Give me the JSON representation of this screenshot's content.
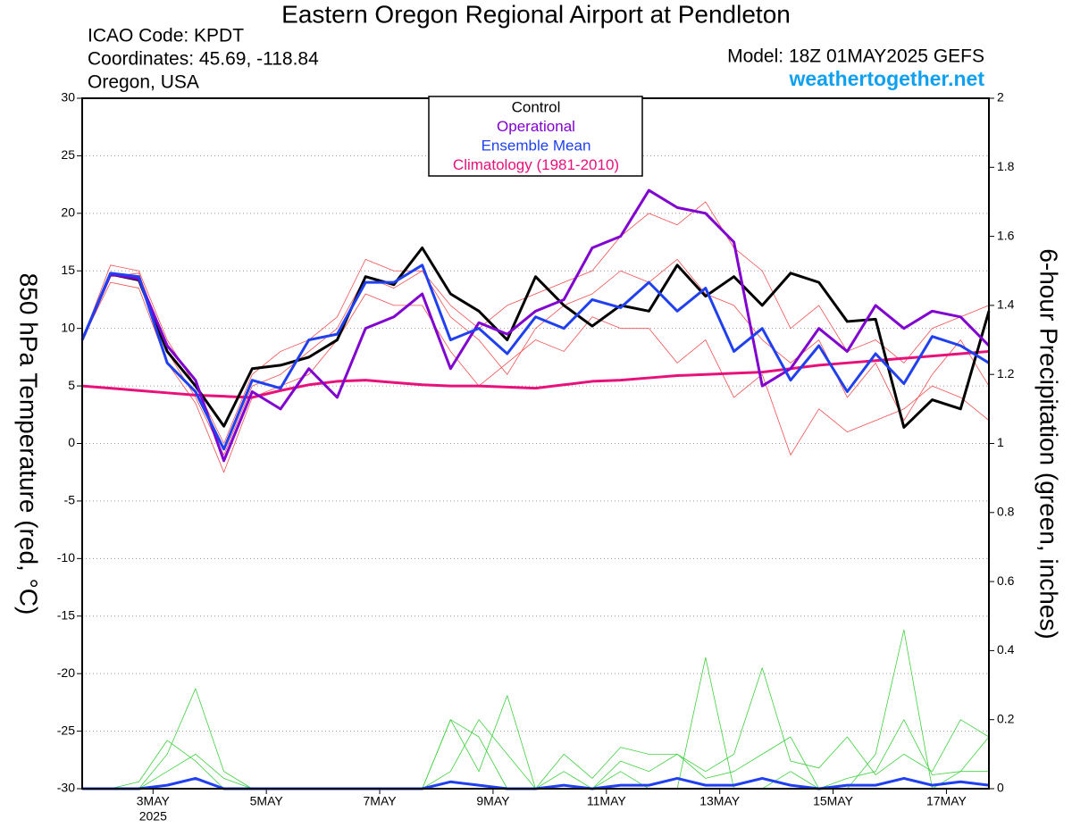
{
  "chart_data": {
    "type": "line",
    "title": "Eastern Oregon Regional Airport at Pendleton",
    "icao": "ICAO Code: KPDT",
    "coordinates": "Coordinates: 45.69, -118.84",
    "location": "Oregon, USA",
    "model": "Model: 18Z 01MAY2025 GEFS",
    "website": "weathertogether.net",
    "year_label": "2025",
    "ylabel": "850 hPa Temperature (red, °C)",
    "y2label": "6-hour Precipitation (green, inches)",
    "x": [
      0,
      12,
      24,
      36,
      48,
      60,
      72,
      84,
      96,
      108,
      120,
      132,
      144,
      156,
      168,
      180,
      192,
      204,
      216,
      228,
      240,
      252,
      264,
      276,
      288,
      300,
      312,
      324,
      336,
      348,
      360,
      372,
      384
    ],
    "xlim": [
      0,
      384
    ],
    "xticks": [
      {
        "value": 30,
        "label": "3MAY"
      },
      {
        "value": 78,
        "label": "5MAY"
      },
      {
        "value": 126,
        "label": "7MAY"
      },
      {
        "value": 174,
        "label": "9MAY"
      },
      {
        "value": 222,
        "label": "11MAY"
      },
      {
        "value": 270,
        "label": "13MAY"
      },
      {
        "value": 318,
        "label": "15MAY"
      },
      {
        "value": 366,
        "label": "17MAY"
      }
    ],
    "ylim": [
      -30,
      30
    ],
    "yticks": [
      -30,
      -25,
      -20,
      -15,
      -10,
      -5,
      0,
      5,
      10,
      15,
      20,
      25,
      30
    ],
    "y2lim": [
      0,
      2
    ],
    "y2ticks": [
      0,
      0.2,
      0.4,
      0.6,
      0.8,
      1,
      1.2,
      1.4,
      1.6,
      1.8,
      2
    ],
    "grid": true,
    "temperature_members": {
      "color": "#f05050",
      "values": [
        [
          9,
          15.5,
          15,
          9,
          5,
          0,
          6,
          8,
          9,
          11,
          16,
          15,
          15,
          12,
          10,
          12,
          13,
          14,
          15,
          18,
          20,
          19,
          21,
          17,
          15,
          10,
          12,
          8,
          9,
          7,
          10,
          11,
          12
        ],
        [
          9,
          14,
          13.5,
          7,
          3.5,
          -2.5,
          4,
          5,
          6,
          9,
          13,
          12,
          12,
          8,
          5,
          7,
          9,
          8,
          11,
          10,
          10,
          7,
          9,
          4,
          6,
          -1,
          3,
          1,
          2,
          3,
          5,
          4,
          2
        ],
        [
          9,
          14.5,
          14.8,
          8,
          4,
          -1,
          5,
          6,
          8,
          10,
          14.5,
          13.5,
          15,
          11,
          9,
          6,
          10,
          12,
          13,
          15,
          14,
          16,
          13,
          12,
          9,
          7,
          9,
          4,
          7,
          2,
          6,
          9,
          5
        ]
      ]
    },
    "precip_members": {
      "color": "#40d040",
      "values": [
        [
          0,
          0,
          0,
          0.1,
          0.29,
          0.05,
          0,
          0,
          0,
          0,
          0,
          0,
          0,
          0.2,
          0.05,
          0.27,
          0,
          0,
          0,
          0.05,
          0,
          0,
          0.38,
          0,
          0,
          0.05,
          0,
          0,
          0.1,
          0.46,
          0,
          0.05,
          0.05
        ],
        [
          0,
          0,
          0.02,
          0.14,
          0.08,
          0,
          0,
          0,
          0,
          0,
          0,
          0,
          0,
          0.2,
          0.15,
          0,
          0,
          0.1,
          0.03,
          0.12,
          0.1,
          0.1,
          0.05,
          0.1,
          0.35,
          0.08,
          0.06,
          0.15,
          0.04,
          0.1,
          0.05,
          0.2,
          0.15
        ],
        [
          0,
          0,
          0,
          0.05,
          0.1,
          0.03,
          0,
          0,
          0,
          0,
          0,
          0,
          0,
          0.05,
          0.2,
          0.1,
          0,
          0.05,
          0,
          0.08,
          0.05,
          0.1,
          0.03,
          0.05,
          0.1,
          0.15,
          0,
          0.03,
          0.05,
          0.2,
          0.04,
          0.05,
          0.15
        ]
      ]
    },
    "precip_mean": {
      "color": "#2040f0",
      "values": [
        0,
        0,
        0,
        0.01,
        0.03,
        0,
        0,
        0,
        0,
        0,
        0,
        0,
        0,
        0.02,
        0.01,
        0,
        0,
        0.01,
        0,
        0.01,
        0.01,
        0.03,
        0.01,
        0.01,
        0.03,
        0.01,
        0,
        0.01,
        0.01,
        0.03,
        0.01,
        0.02,
        0.01
      ]
    },
    "series": [
      {
        "name": "Control",
        "color": "#000000",
        "values": [
          9,
          14.7,
          14.2,
          8,
          5,
          1.5,
          6.5,
          6.8,
          7.5,
          9,
          14.5,
          13.8,
          17,
          13,
          11.5,
          9,
          14.5,
          12,
          10.2,
          12,
          11.5,
          15.5,
          12.8,
          14.5,
          12,
          14.8,
          14,
          10.6,
          10.8,
          1.4,
          3.8,
          3,
          11.5
        ]
      },
      {
        "name": "Operational",
        "color": "#8000d0",
        "values": [
          9,
          14.7,
          14.3,
          8.5,
          5.5,
          -1.5,
          4.5,
          3,
          6.5,
          4,
          10,
          11,
          13,
          6.5,
          10.5,
          9.5,
          11.5,
          12.5,
          17,
          18,
          22,
          20.5,
          20,
          17.5,
          5,
          6.5,
          10,
          8,
          12,
          10,
          11.5,
          11,
          8.5
        ]
      },
      {
        "name": "Ensemble Mean",
        "color": "#2040f0",
        "values": [
          9,
          14.8,
          14.5,
          7,
          4.5,
          -0.5,
          5.5,
          4.8,
          9,
          9.5,
          14,
          14,
          15.5,
          9,
          10,
          7.8,
          11,
          10,
          12.5,
          11.8,
          14,
          11.5,
          13.5,
          8,
          10,
          5.5,
          8.5,
          4.5,
          7.8,
          5.2,
          9.3,
          8.5,
          7
        ]
      },
      {
        "name": "Climatology (1981-2010)",
        "color": "#e8107a",
        "values": [
          5,
          4.8,
          4.6,
          4.4,
          4.2,
          4.1,
          4,
          4.6,
          5.1,
          5.4,
          5.5,
          5.3,
          5.1,
          5,
          5,
          4.9,
          4.8,
          5.1,
          5.4,
          5.5,
          5.7,
          5.9,
          6,
          6.1,
          6.2,
          6.5,
          6.8,
          7,
          7.2,
          7.4,
          7.6,
          7.8,
          8
        ]
      }
    ]
  }
}
